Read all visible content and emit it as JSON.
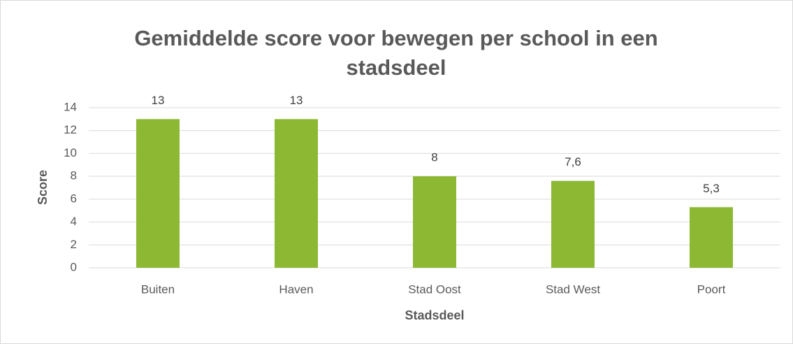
{
  "chart_data": {
    "type": "bar",
    "title": "Gemiddelde score voor bewegen per school in een stadsdeel",
    "x_label": "Stadsdeel",
    "y_label": "Score",
    "categories": [
      "Buiten",
      "Haven",
      "Stad Oost",
      "Stad West",
      "Poort"
    ],
    "values": [
      13,
      13,
      8,
      7.6,
      5.3
    ],
    "value_labels": [
      "13",
      "13",
      "8",
      "7,6",
      "5,3"
    ],
    "color": "#8cb833",
    "ylim": [
      0,
      14
    ],
    "yticks": [
      0,
      2,
      4,
      6,
      8,
      10,
      12,
      14
    ],
    "grid": true
  }
}
